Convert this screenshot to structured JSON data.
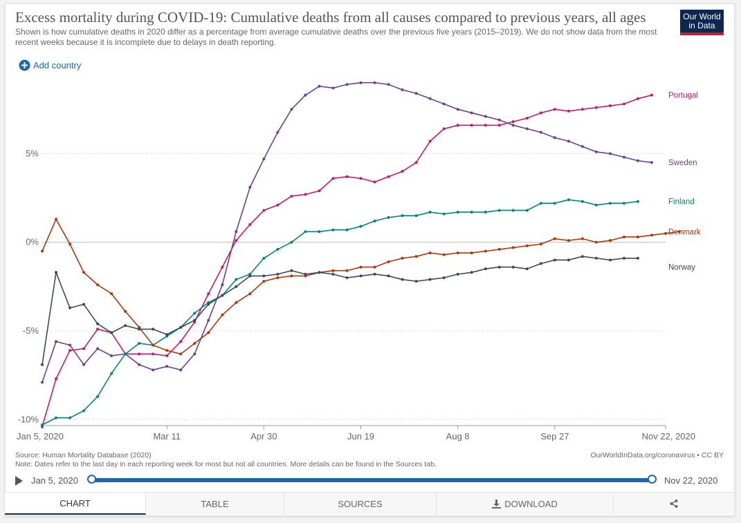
{
  "header": {
    "title": "Excess mortality during COVID-19: Cumulative deaths from all causes compared to previous years, all ages",
    "subtitle": "Shown is how cumulative deaths in 2020 differ as a percentage from average cumulative deaths over the previous five years (2015–2019). We do not show data from the most recent weeks because it is incomplete due to delays in death reporting.",
    "logo_line1": "Our World",
    "logo_line2": "in Data"
  },
  "controls": {
    "add_country_label": "Add country"
  },
  "footer": {
    "source": "Source: Human Mortality Database (2020)",
    "note": "Note: Dates refer to the last day in each reporting week for most but not all countries. More details can be found in the Sources tab.",
    "credit": "OurWorldInData.org/coronavirus • CC BY"
  },
  "timeline": {
    "start": "Jan 5, 2020",
    "end": "Nov 22, 2020"
  },
  "tabs": {
    "chart": "CHART",
    "table": "TABLE",
    "sources": "SOURCES",
    "download": "DOWNLOAD"
  },
  "colors": {
    "accent": "#1f66b1",
    "brand": "#0d2850",
    "brand_red": "#c71f2b"
  },
  "chart_data": {
    "type": "line",
    "title": "Excess mortality during COVID-19: Cumulative deaths from all causes compared to previous years, all ages",
    "xlabel": "",
    "ylabel": "",
    "x_unit": "week index (weekly from Jan 5, 2020)",
    "x_ticks": [
      {
        "x": 0,
        "label": "Jan 5, 2020"
      },
      {
        "x": 9,
        "label": "Mar 11"
      },
      {
        "x": 16,
        "label": "Apr 30"
      },
      {
        "x": 23,
        "label": "Jun 19"
      },
      {
        "x": 30,
        "label": "Aug 8"
      },
      {
        "x": 37,
        "label": "Sep 27"
      },
      {
        "x": 45,
        "label": "Nov 22, 2020"
      }
    ],
    "y_ticks": [
      {
        "y": -10,
        "label": "-10%"
      },
      {
        "y": -5,
        "label": "-5%"
      },
      {
        "y": 0,
        "label": "0%"
      },
      {
        "y": 5,
        "label": "5%"
      }
    ],
    "ylim": [
      -10.3,
      9.3
    ],
    "xlim": [
      0,
      45
    ],
    "series": [
      {
        "name": "Portugal",
        "color": "#c4176d",
        "values": [
          -10.4,
          -7.7,
          -6.1,
          -6.0,
          -4.9,
          -5.1,
          -6.3,
          -6.3,
          -6.3,
          -6.4,
          -5.6,
          -4.5,
          -2.9,
          -1.4,
          0.1,
          1.0,
          1.8,
          2.1,
          2.6,
          2.7,
          2.9,
          3.6,
          3.7,
          3.6,
          3.4,
          3.7,
          4.0,
          4.5,
          5.7,
          6.4,
          6.6,
          6.6,
          6.6,
          6.6,
          6.8,
          7.0,
          7.3,
          7.5,
          7.4,
          7.5,
          7.6,
          7.7,
          7.8,
          8.1,
          8.3
        ]
      },
      {
        "name": "Sweden",
        "color": "#6d3e91",
        "values": [
          -7.9,
          -5.6,
          -5.8,
          -6.9,
          -6.0,
          -6.4,
          -6.3,
          -6.9,
          -7.2,
          -7.0,
          -7.2,
          -6.3,
          -4.4,
          -2.4,
          0.6,
          3.1,
          4.7,
          6.2,
          7.5,
          8.3,
          8.8,
          8.7,
          8.9,
          9.0,
          9.0,
          8.9,
          8.6,
          8.4,
          8.1,
          7.8,
          7.5,
          7.3,
          7.1,
          6.9,
          6.6,
          6.4,
          6.2,
          5.9,
          5.7,
          5.4,
          5.1,
          5.0,
          4.8,
          4.6,
          4.5
        ]
      },
      {
        "name": "Finland",
        "color": "#00847e",
        "values": [
          -10.3,
          -9.9,
          -9.9,
          -9.5,
          -8.7,
          -7.4,
          -6.3,
          -5.7,
          -5.8,
          -5.3,
          -4.8,
          -4.0,
          -3.4,
          -3.0,
          -2.1,
          -1.8,
          -0.9,
          -0.4,
          0.0,
          0.6,
          0.6,
          0.7,
          0.7,
          0.9,
          1.2,
          1.4,
          1.5,
          1.5,
          1.7,
          1.6,
          1.7,
          1.7,
          1.7,
          1.8,
          1.8,
          1.8,
          2.2,
          2.2,
          2.4,
          2.3,
          2.1,
          2.2,
          2.2,
          2.3
        ]
      },
      {
        "name": "Denmark",
        "color": "#b13507",
        "values": [
          -0.5,
          1.3,
          -0.1,
          -1.7,
          -2.4,
          -2.9,
          -3.9,
          -4.8,
          -5.8,
          -6.1,
          -6.3,
          -5.7,
          -5.1,
          -4.1,
          -3.4,
          -2.9,
          -2.2,
          -2.0,
          -1.9,
          -1.9,
          -1.7,
          -1.6,
          -1.6,
          -1.4,
          -1.4,
          -1.1,
          -0.9,
          -0.8,
          -0.6,
          -0.7,
          -0.6,
          -0.6,
          -0.5,
          -0.4,
          -0.3,
          -0.2,
          -0.1,
          0.2,
          0.1,
          0.2,
          0.0,
          0.1,
          0.3,
          0.3,
          0.4,
          0.5,
          0.6
        ]
      },
      {
        "name": "Norway",
        "color": "#38495f",
        "values": [
          -6.9,
          -1.7,
          -3.7,
          -3.5,
          -4.6,
          -5.1,
          -4.7,
          -4.9,
          -4.9,
          -5.2,
          -4.8,
          -4.4,
          -3.5,
          -3.0,
          -2.5,
          -1.9,
          -1.9,
          -1.8,
          -1.6,
          -1.8,
          -1.7,
          -1.8,
          -2.0,
          -1.9,
          -1.8,
          -1.9,
          -2.1,
          -2.2,
          -2.1,
          -2.0,
          -1.8,
          -1.7,
          -1.5,
          -1.4,
          -1.4,
          -1.5,
          -1.2,
          -1.0,
          -1.0,
          -0.8,
          -0.9,
          -1.0,
          -0.9,
          -0.9
        ]
      }
    ]
  }
}
